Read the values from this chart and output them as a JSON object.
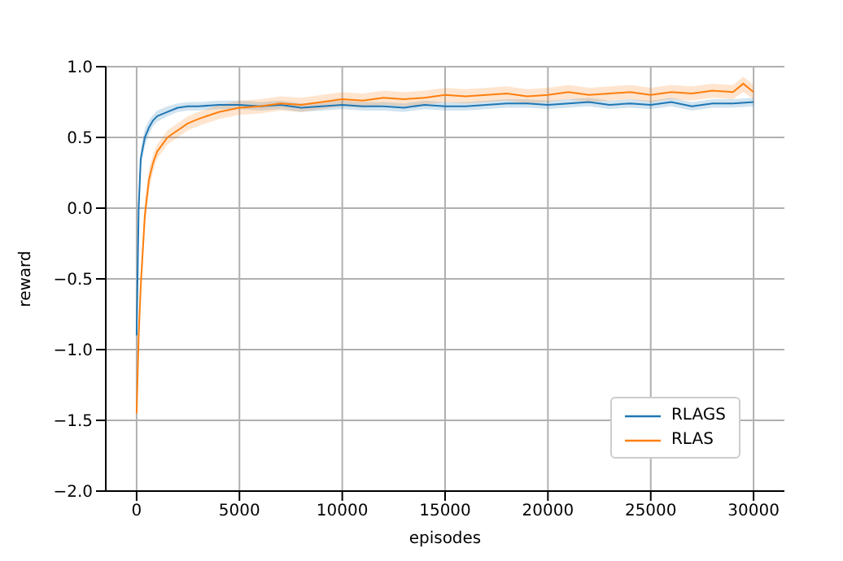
{
  "chart_data": {
    "type": "line",
    "xlabel": "episodes",
    "ylabel": "reward",
    "xlim": [
      -1500,
      31500
    ],
    "ylim": [
      -2.0,
      1.0
    ],
    "xticks": [
      0,
      5000,
      10000,
      15000,
      20000,
      25000,
      30000
    ],
    "yticks": [
      {
        "value": -2.0,
        "label": "−2.0"
      },
      {
        "value": -1.5,
        "label": "−1.5"
      },
      {
        "value": -1.0,
        "label": "−1.0"
      },
      {
        "value": -0.5,
        "label": "−0.5"
      },
      {
        "value": 0.0,
        "label": "0.0"
      },
      {
        "value": 0.5,
        "label": "0.5"
      },
      {
        "value": 1.0,
        "label": "1.0"
      }
    ],
    "grid": true,
    "legend": "bottom right",
    "marker": "none",
    "line_style": "solid",
    "series": [
      {
        "name": "RLAGS",
        "color": "#1f77b4",
        "x": [
          0,
          100,
          200,
          400,
          600,
          800,
          1000,
          1500,
          2000,
          2500,
          3000,
          4000,
          5000,
          6000,
          7000,
          8000,
          9000,
          10000,
          11000,
          12000,
          13000,
          14000,
          15000,
          16000,
          17000,
          18000,
          19000,
          20000,
          21000,
          22000,
          23000,
          24000,
          25000,
          26000,
          27000,
          28000,
          29000,
          30000
        ],
        "values": [
          -0.9,
          0.0,
          0.35,
          0.5,
          0.57,
          0.62,
          0.65,
          0.68,
          0.71,
          0.72,
          0.72,
          0.73,
          0.73,
          0.72,
          0.73,
          0.71,
          0.72,
          0.73,
          0.72,
          0.72,
          0.71,
          0.73,
          0.72,
          0.72,
          0.73,
          0.74,
          0.74,
          0.73,
          0.74,
          0.75,
          0.73,
          0.74,
          0.73,
          0.75,
          0.72,
          0.74,
          0.74,
          0.75
        ],
        "lower": [
          -1.0,
          -0.1,
          0.28,
          0.44,
          0.52,
          0.58,
          0.61,
          0.65,
          0.68,
          0.69,
          0.69,
          0.7,
          0.7,
          0.69,
          0.7,
          0.68,
          0.69,
          0.7,
          0.69,
          0.69,
          0.68,
          0.7,
          0.69,
          0.69,
          0.7,
          0.71,
          0.71,
          0.7,
          0.71,
          0.72,
          0.7,
          0.71,
          0.7,
          0.72,
          0.69,
          0.71,
          0.71,
          0.72
        ],
        "upper": [
          -0.8,
          0.1,
          0.42,
          0.56,
          0.62,
          0.66,
          0.69,
          0.72,
          0.74,
          0.75,
          0.75,
          0.76,
          0.76,
          0.75,
          0.76,
          0.74,
          0.75,
          0.76,
          0.75,
          0.75,
          0.74,
          0.76,
          0.75,
          0.75,
          0.76,
          0.77,
          0.77,
          0.76,
          0.77,
          0.78,
          0.76,
          0.77,
          0.76,
          0.78,
          0.75,
          0.77,
          0.77,
          0.78
        ]
      },
      {
        "name": "RLAS",
        "color": "#ff7f0e",
        "x": [
          0,
          100,
          200,
          400,
          600,
          800,
          1000,
          1500,
          2000,
          2500,
          3000,
          4000,
          5000,
          6000,
          7000,
          8000,
          9000,
          10000,
          11000,
          12000,
          13000,
          14000,
          15000,
          16000,
          17000,
          18000,
          19000,
          20000,
          21000,
          22000,
          23000,
          24000,
          25000,
          26000,
          27000,
          28000,
          29000,
          29500,
          30000
        ],
        "values": [
          -1.45,
          -0.9,
          -0.55,
          -0.05,
          0.2,
          0.32,
          0.4,
          0.5,
          0.55,
          0.6,
          0.63,
          0.68,
          0.71,
          0.72,
          0.74,
          0.73,
          0.75,
          0.77,
          0.76,
          0.78,
          0.77,
          0.78,
          0.8,
          0.79,
          0.8,
          0.81,
          0.79,
          0.8,
          0.82,
          0.8,
          0.81,
          0.82,
          0.8,
          0.82,
          0.81,
          0.83,
          0.82,
          0.88,
          0.82
        ],
        "lower": [
          -1.5,
          -1.0,
          -0.65,
          -0.15,
          0.12,
          0.26,
          0.35,
          0.45,
          0.5,
          0.55,
          0.58,
          0.63,
          0.66,
          0.67,
          0.69,
          0.68,
          0.7,
          0.72,
          0.71,
          0.73,
          0.72,
          0.73,
          0.75,
          0.74,
          0.75,
          0.76,
          0.74,
          0.75,
          0.77,
          0.75,
          0.76,
          0.77,
          0.75,
          0.77,
          0.76,
          0.78,
          0.77,
          0.82,
          0.77
        ],
        "upper": [
          -1.4,
          -0.8,
          -0.45,
          0.05,
          0.28,
          0.38,
          0.45,
          0.55,
          0.6,
          0.65,
          0.68,
          0.73,
          0.76,
          0.77,
          0.79,
          0.78,
          0.8,
          0.82,
          0.81,
          0.83,
          0.82,
          0.83,
          0.85,
          0.84,
          0.85,
          0.86,
          0.84,
          0.85,
          0.87,
          0.85,
          0.86,
          0.87,
          0.85,
          0.87,
          0.86,
          0.88,
          0.87,
          0.93,
          0.87
        ]
      }
    ]
  }
}
